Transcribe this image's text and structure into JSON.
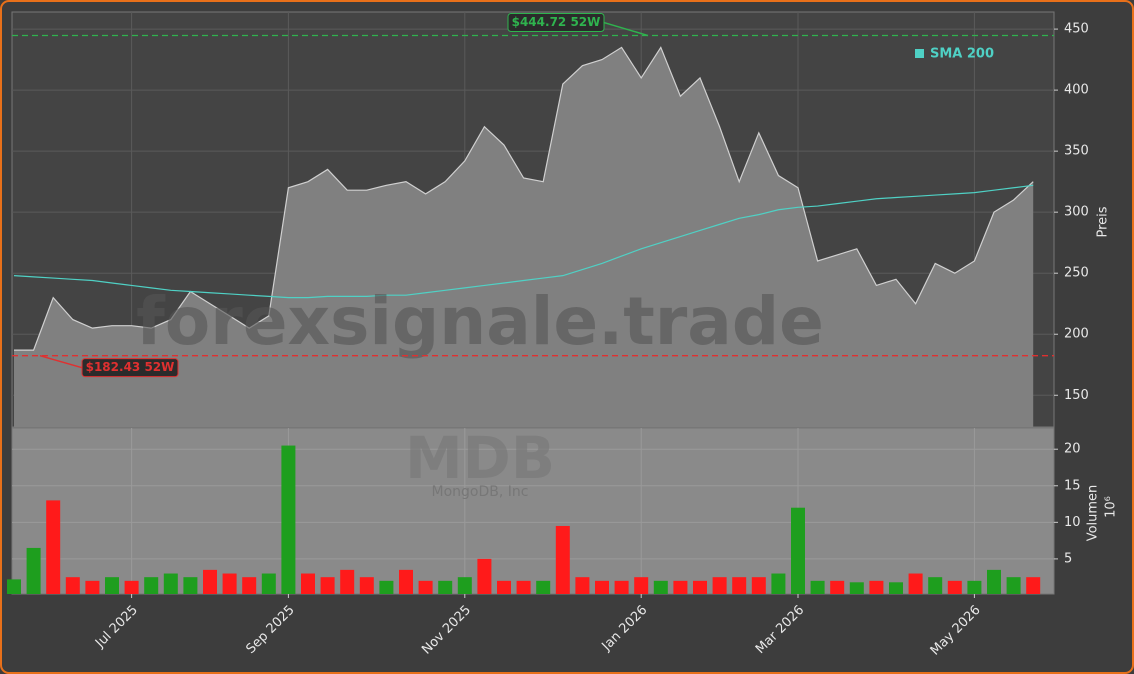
{
  "chart_data": {
    "type": "area",
    "categories": [
      null,
      null,
      null,
      null,
      null,
      null,
      "Jul 2025",
      null,
      null,
      null,
      null,
      null,
      null,
      null,
      "Sep 2025",
      null,
      null,
      null,
      null,
      null,
      null,
      null,
      null,
      "Nov 2025",
      null,
      null,
      null,
      null,
      null,
      null,
      null,
      null,
      "Jan 2026",
      null,
      null,
      null,
      null,
      null,
      null,
      null,
      "Mar 2026",
      null,
      null,
      null,
      null,
      null,
      null,
      null,
      null,
      "May 2026",
      null,
      null,
      null
    ],
    "series": [
      {
        "color": "#d0d0d0",
        "fill": "#808080",
        "values": [
          187,
          187,
          230,
          212,
          205,
          207,
          207,
          205,
          212,
          235,
          225,
          215,
          205,
          215,
          320,
          325,
          335,
          318,
          318,
          322,
          325,
          315,
          325,
          342,
          370,
          355,
          328,
          325,
          405,
          420,
          425,
          435,
          410,
          435,
          395,
          410,
          370,
          325,
          365,
          330,
          320,
          260,
          265,
          270,
          240,
          245,
          225,
          258,
          250,
          260,
          300,
          310,
          325
        ]
      },
      {
        "name": "SMA 200",
        "color": "#4fd1c5",
        "values": [
          248,
          247,
          246,
          245,
          244,
          242,
          240,
          238,
          236,
          235,
          234,
          233,
          232,
          231,
          230,
          230,
          231,
          231,
          231,
          232,
          232,
          234,
          236,
          238,
          240,
          242,
          244,
          246,
          248,
          253,
          258,
          264,
          270,
          275,
          280,
          285,
          290,
          295,
          298,
          302,
          304,
          305,
          307,
          309,
          311,
          312,
          313,
          314,
          315,
          316,
          318,
          320,
          322
        ]
      }
    ],
    "ylim": [
      124,
      464
    ],
    "yticks": [
      150,
      200,
      250,
      300,
      350,
      400,
      450
    ],
    "y_label": "Preis",
    "grid": true,
    "legend": "upper right",
    "annotations": [
      {
        "label": "$444.72 52W",
        "value": 444.72,
        "color": "#2fb34e"
      },
      {
        "label": "$182.43 52W",
        "value": 182.43,
        "color": "#e03030"
      }
    ],
    "watermark": "forexsignale.trade",
    "ticker": "MDB",
    "company": "MongoDB, Inc",
    "volume": {
      "type": "bar",
      "y_label": "Volumen",
      "y_unit": "10⁶",
      "ylim": [
        0.2,
        22.9
      ],
      "yticks": [
        5,
        10,
        15,
        20
      ],
      "values": [
        2.2,
        6.5,
        13,
        2.5,
        2,
        2.5,
        2,
        2.5,
        3,
        2.5,
        3.5,
        3,
        2.5,
        3,
        20.5,
        3,
        2.5,
        3.5,
        2.5,
        2,
        3.5,
        2,
        2,
        2.5,
        5,
        2,
        2,
        2,
        9.5,
        2.5,
        2,
        2,
        2.5,
        2,
        2,
        2,
        2.5,
        2.5,
        2.5,
        3,
        12,
        2,
        2,
        1.8,
        2,
        1.8,
        3,
        2.5,
        2,
        2,
        3.5,
        2.5,
        2.5
      ],
      "colors": [
        "#1e9e1e",
        "#1e9e1e",
        "#ff1a1a",
        "#ff1a1a",
        "#ff1a1a",
        "#1e9e1e",
        "#ff1a1a",
        "#1e9e1e",
        "#1e9e1e",
        "#1e9e1e",
        "#ff1a1a",
        "#ff1a1a",
        "#ff1a1a",
        "#1e9e1e",
        "#1e9e1e",
        "#ff1a1a",
        "#ff1a1a",
        "#ff1a1a",
        "#ff1a1a",
        "#1e9e1e",
        "#ff1a1a",
        "#ff1a1a",
        "#1e9e1e",
        "#1e9e1e",
        "#ff1a1a",
        "#ff1a1a",
        "#ff1a1a",
        "#1e9e1e",
        "#ff1a1a",
        "#ff1a1a",
        "#ff1a1a",
        "#ff1a1a",
        "#ff1a1a",
        "#1e9e1e",
        "#ff1a1a",
        "#ff1a1a",
        "#ff1a1a",
        "#ff1a1a",
        "#ff1a1a",
        "#1e9e1e",
        "#1e9e1e",
        "#1e9e1e",
        "#ff1a1a",
        "#1e9e1e",
        "#ff1a1a",
        "#1e9e1e",
        "#ff1a1a",
        "#1e9e1e",
        "#ff1a1a",
        "#1e9e1e",
        "#1e9e1e",
        "#1e9e1e",
        "#ff1a1a"
      ]
    }
  }
}
